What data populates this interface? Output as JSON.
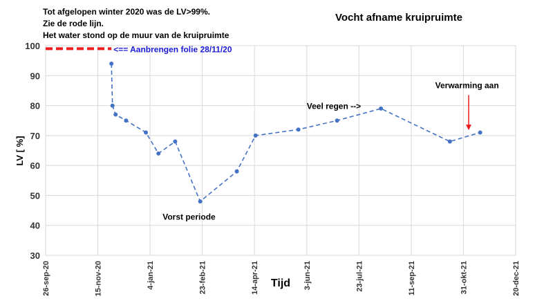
{
  "chart_data": {
    "type": "line",
    "title": "Vocht afname kruipruimte",
    "xlabel": "Tijd",
    "ylabel": "LV [ %]",
    "ylim": [
      30,
      100
    ],
    "yticks": [
      30,
      40,
      50,
      60,
      70,
      80,
      90,
      100
    ],
    "xlim": [
      "2020-09-26",
      "2021-12-20"
    ],
    "xticks": [
      {
        "date": "2020-09-26",
        "label": "26-sep-20"
      },
      {
        "date": "2020-11-15",
        "label": "15-nov-20"
      },
      {
        "date": "2021-01-04",
        "label": "4-jan-21"
      },
      {
        "date": "2021-02-23",
        "label": "23-feb-21"
      },
      {
        "date": "2021-04-14",
        "label": "14-apr-21"
      },
      {
        "date": "2021-06-03",
        "label": "3-jun-21"
      },
      {
        "date": "2021-07-23",
        "label": "23-jul-21"
      },
      {
        "date": "2021-09-11",
        "label": "11-sep-21"
      },
      {
        "date": "2021-10-31",
        "label": "31-okt-21"
      },
      {
        "date": "2021-12-20",
        "label": "20-dec-21"
      }
    ],
    "grid": {
      "x": true,
      "y": true
    },
    "series": [
      {
        "color": "#4472c4",
        "line_style": "dashed",
        "points": [
          {
            "x": "2020-11-28",
            "y": 94
          },
          {
            "x": "2020-11-29",
            "y": 80
          },
          {
            "x": "2020-12-02",
            "y": 77
          },
          {
            "x": "2020-12-12",
            "y": 75
          },
          {
            "x": "2020-12-31",
            "y": 71
          },
          {
            "x": "2021-01-12",
            "y": 64
          },
          {
            "x": "2021-01-28",
            "y": 68
          },
          {
            "x": "2021-02-21",
            "y": 48
          },
          {
            "x": "2021-03-28",
            "y": 58
          },
          {
            "x": "2021-04-15",
            "y": 70
          },
          {
            "x": "2021-05-26",
            "y": 72
          },
          {
            "x": "2021-07-02",
            "y": 75
          },
          {
            "x": "2021-08-13",
            "y": 79
          },
          {
            "x": "2021-10-18",
            "y": 68
          },
          {
            "x": "2021-11-16",
            "y": 71
          }
        ]
      }
    ],
    "reference_line": {
      "y": 99,
      "x_start": "2020-09-26",
      "x_end": "2020-11-28",
      "color": "#ee1c1c"
    },
    "annotations": [
      {
        "text": "<== Aanbrengen folie 28/11/20",
        "x": "2020-11-30",
        "y": 99,
        "color": "#1a1ad6"
      },
      {
        "text": "Vorst periode",
        "x": "2021-01-16",
        "y": 43
      },
      {
        "text": "Veel regen -->",
        "x": "2021-06-03",
        "y": 80
      },
      {
        "text": "Verwarming aan",
        "x": "2021-10-04",
        "y": 87
      }
    ],
    "arrow": {
      "x": "2021-11-05",
      "y_from": 83.5,
      "y_to": 71.8,
      "color": "#ee1c1c"
    },
    "notes": [
      "Tot afgelopen winter  2020 was de LV>99%.",
      "Zie de rode lijn.",
      "Het water stond op de muur van de kruipruimte"
    ]
  }
}
